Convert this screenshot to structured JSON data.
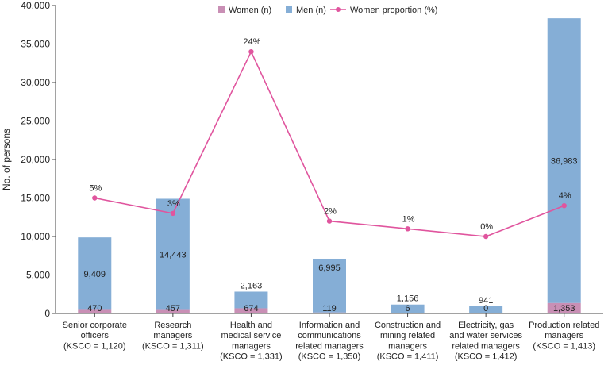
{
  "chart_data": {
    "type": "bar",
    "subtype": "stacked-bar-with-line",
    "ylabel": "No. of persons",
    "ylim": [
      0,
      40000
    ],
    "yticks": [
      0,
      5000,
      10000,
      15000,
      20000,
      25000,
      30000,
      35000,
      40000
    ],
    "ytick_labels": [
      "0",
      "5,000",
      "10,000",
      "15,000",
      "20,000",
      "25,000",
      "30,000",
      "35,000",
      "40,000"
    ],
    "legend_position": "top",
    "categories": [
      [
        "Senior corporate",
        "officers",
        "(KSCO = 1,120)"
      ],
      [
        "Research",
        "managers",
        "(KSCO = 1,311)"
      ],
      [
        "Health and",
        "medical service",
        "managers",
        "(KSCO = 1,331)"
      ],
      [
        "Information and",
        "communications",
        "related managers",
        "(KSCO = 1,350)"
      ],
      [
        "Construction and",
        "mining related",
        "managers",
        "(KSCO = 1,411)"
      ],
      [
        "Electricity, gas",
        "and water services",
        "related managers",
        "(KSCO = 1,412)"
      ],
      [
        "Production related",
        "managers",
        "(KSCO = 1,413)"
      ]
    ],
    "series": [
      {
        "name": "Women (n)",
        "kind": "bar",
        "color": "#c98fb5",
        "values": [
          470,
          457,
          674,
          119,
          6,
          0,
          1353
        ],
        "labels": [
          "470",
          "457",
          "674",
          "119",
          "6",
          "0",
          "1,353"
        ]
      },
      {
        "name": "Men (n)",
        "kind": "bar",
        "color": "#85aed6",
        "values": [
          9409,
          14443,
          2163,
          6995,
          1156,
          941,
          36983
        ],
        "labels": [
          "9,409",
          "14,443",
          "2,163",
          "6,995",
          "1,156",
          "941",
          "36,983"
        ]
      },
      {
        "name": "Women proportion (%)",
        "kind": "line",
        "color": "#e0559e",
        "values": [
          5,
          3,
          24,
          2,
          1,
          0,
          4
        ],
        "labels": [
          "5%",
          "3%",
          "24%",
          "2%",
          "1%",
          "0%",
          "4%"
        ],
        "plot_positions": [
          15000,
          13000,
          34000,
          12000,
          11000,
          10000,
          14000
        ]
      }
    ]
  }
}
